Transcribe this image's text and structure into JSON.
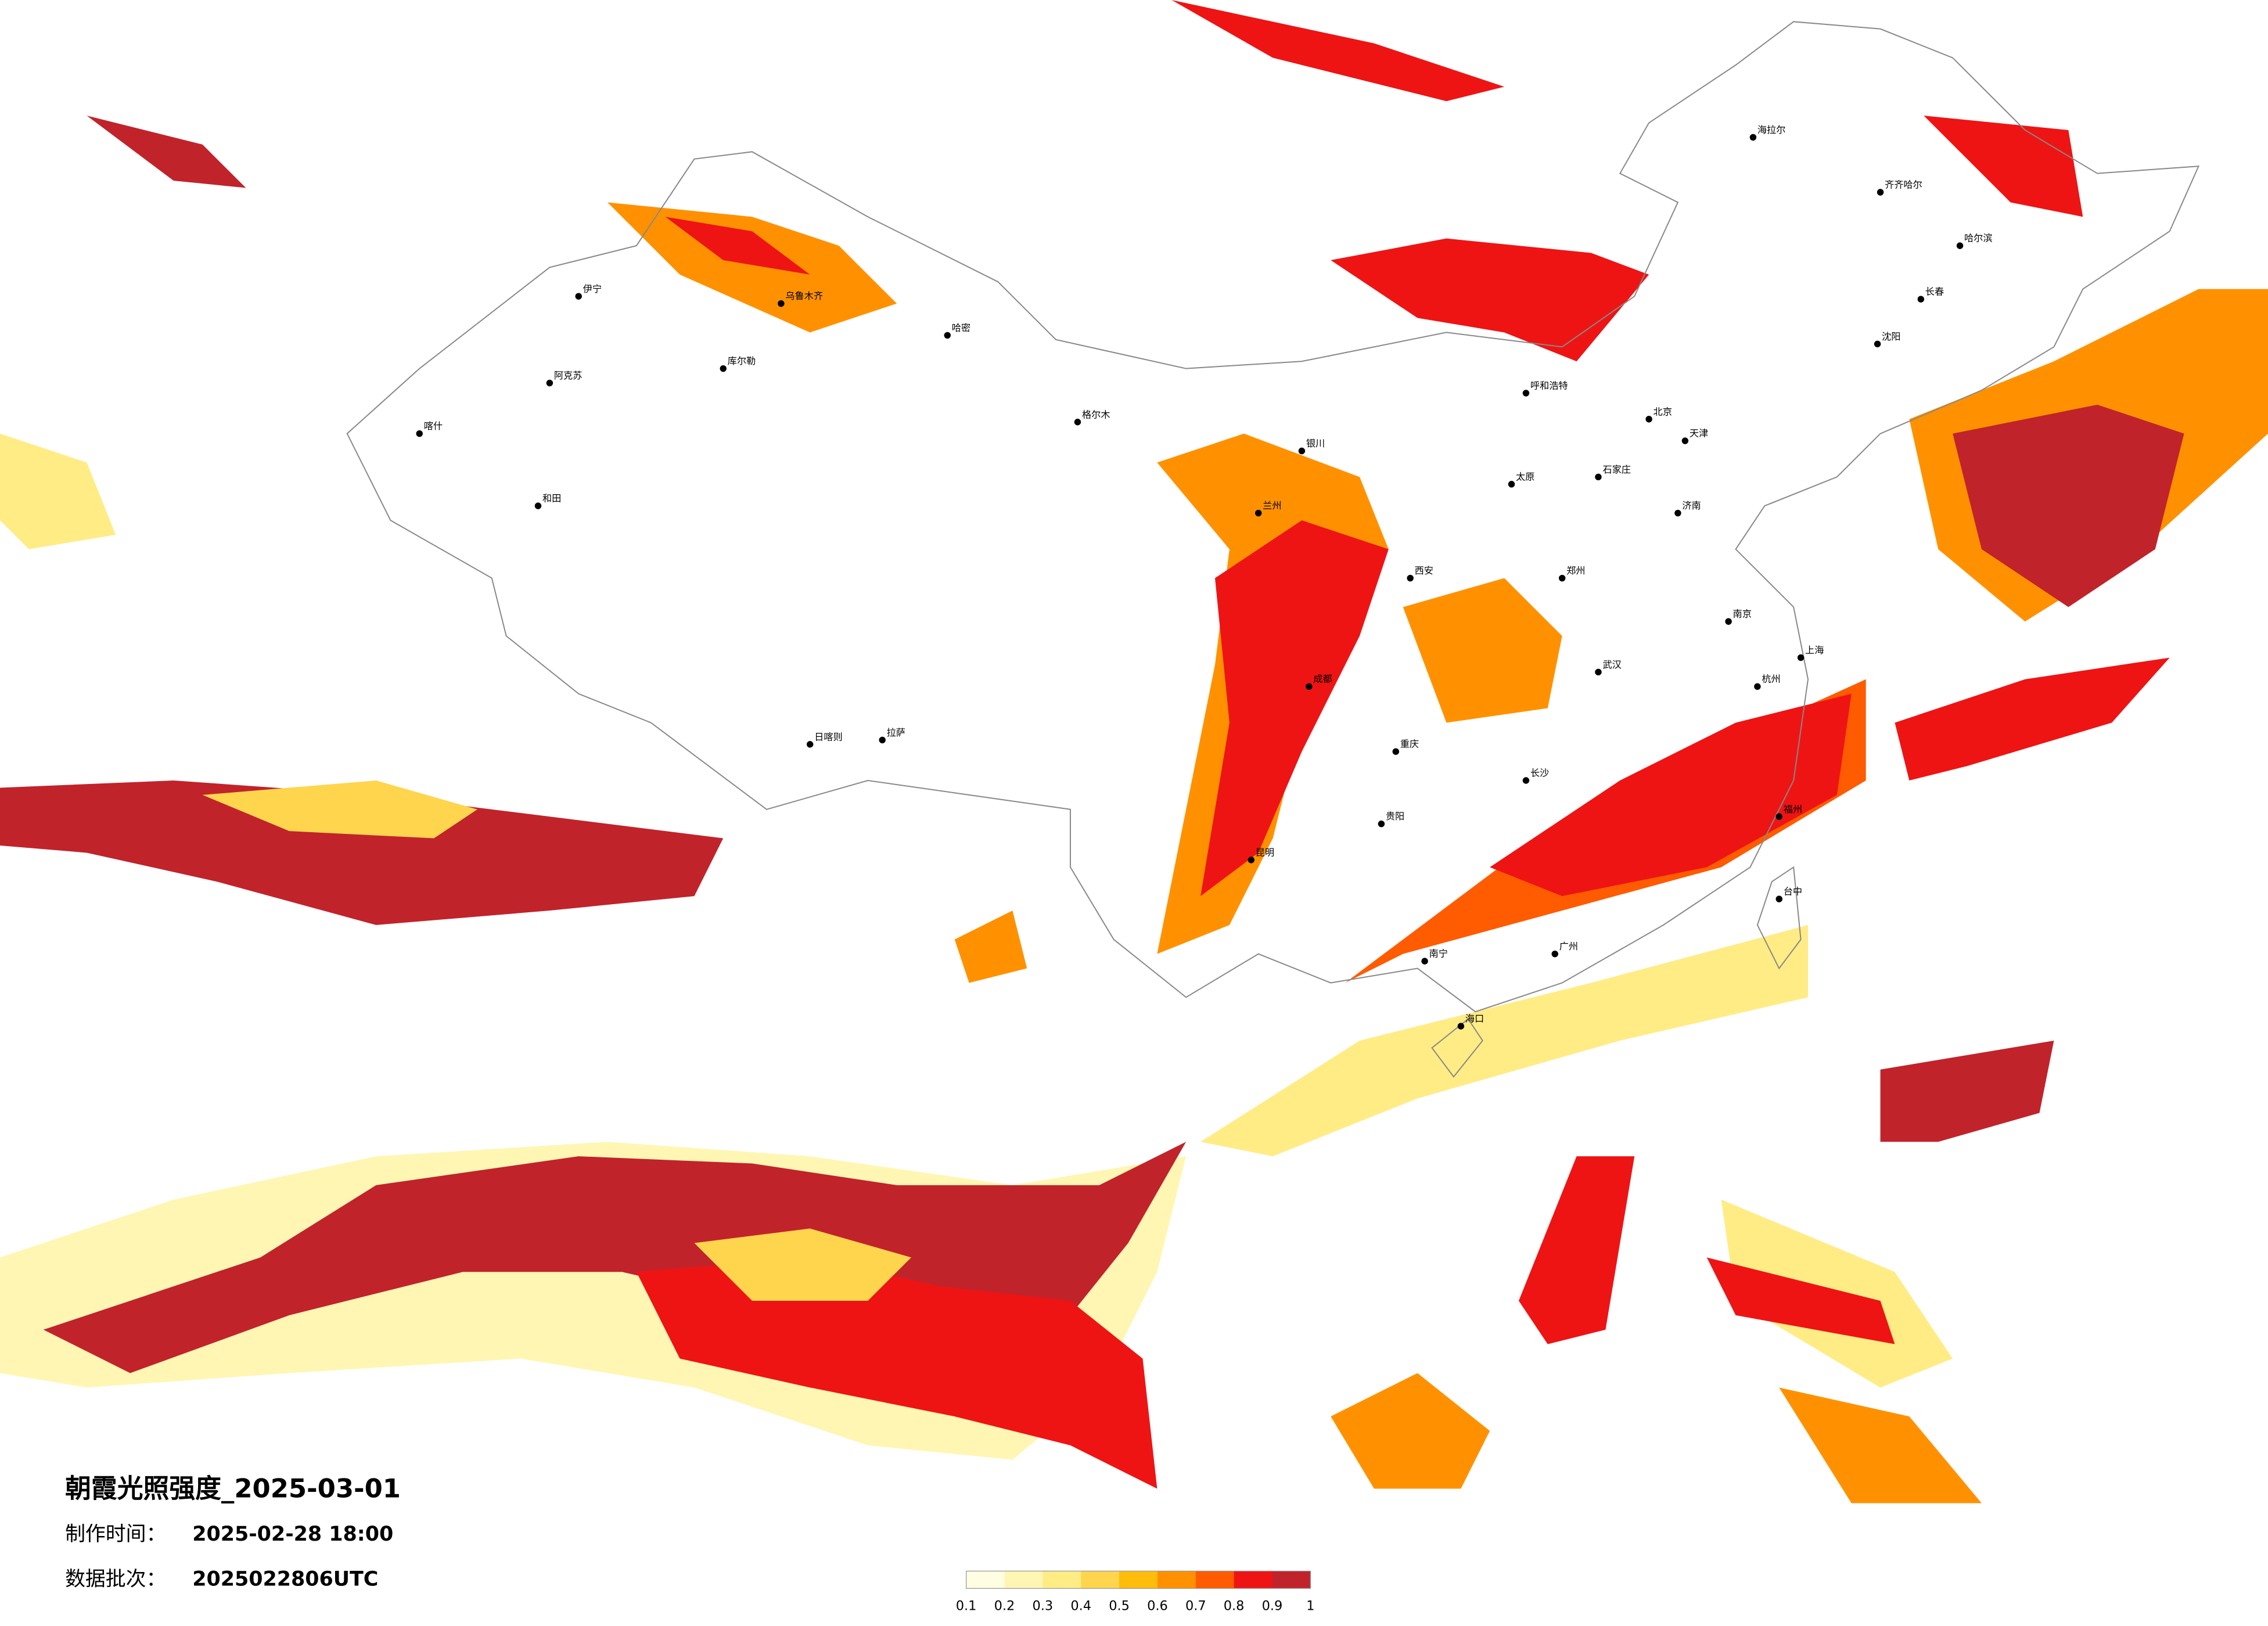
{
  "title": "朝霞光照强度_2025-03-01",
  "made_time": {
    "label": "制作时间：",
    "value": "2025-02-28 18:00"
  },
  "batch": {
    "label": "数据批次：",
    "value": "2025022806UTC"
  },
  "legend": {
    "ticks": [
      0.1,
      0.2,
      0.3,
      0.4,
      0.5,
      0.6,
      0.7,
      0.8,
      0.9,
      1
    ],
    "colors": [
      "#fffde2",
      "#fff6b4",
      "#ffec85",
      "#ffd54d",
      "#ffbc0a",
      "#ff9100",
      "#ff5b00",
      "#ee1414",
      "#c1232b"
    ]
  },
  "cities": [
    "海拉尔",
    "齐齐哈尔",
    "哈尔滨",
    "长春",
    "沈阳",
    "北京",
    "天津",
    "石家庄",
    "太原",
    "呼和浩特",
    "济南",
    "郑州",
    "西安",
    "兰州",
    "银川",
    "乌鲁木齐",
    "喀什",
    "和田",
    "阿克苏",
    "库尔勒",
    "哈密",
    "拉萨",
    "日喀则",
    "成都",
    "重庆",
    "昆明",
    "贵阳",
    "南宁",
    "广州",
    "长沙",
    "武汉",
    "南京",
    "上海",
    "杭州",
    "福州",
    "台中",
    "海口",
    "伊宁",
    "格尔木"
  ]
}
